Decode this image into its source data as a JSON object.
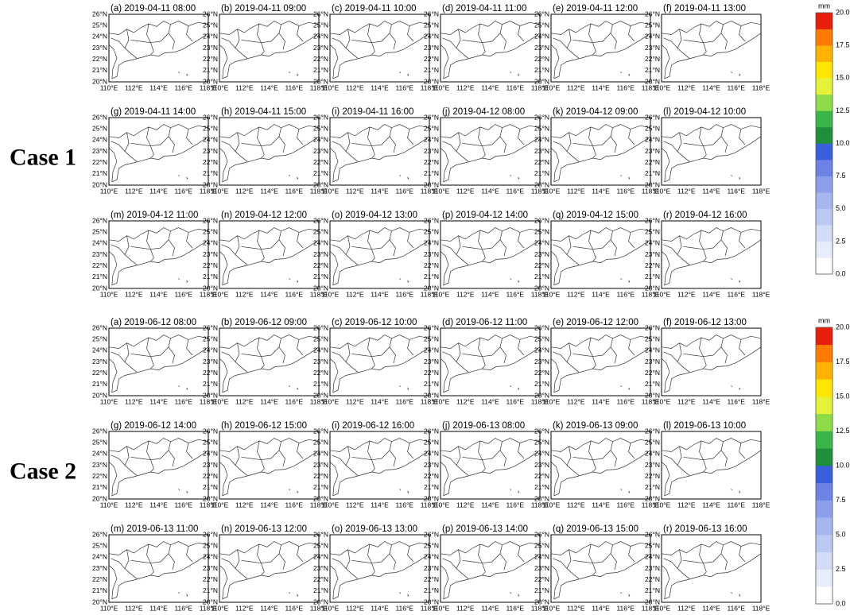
{
  "cases": [
    {
      "label": "Case 1",
      "panels": [
        "(a) 2019-04-11 08:00",
        "(b) 2019-04-11 09:00",
        "(c) 2019-04-11 10:00",
        "(d) 2019-04-11 11:00",
        "(e) 2019-04-11 12:00",
        "(f) 2019-04-11 13:00",
        "(g) 2019-04-11 14:00",
        "(h) 2019-04-11 15:00",
        "(i) 2019-04-11 16:00",
        "(j) 2019-04-12 08:00",
        "(k) 2019-04-12 09:00",
        "(l) 2019-04-12 10:00",
        "(m) 2019-04-12 11:00",
        "(n) 2019-04-12 12:00",
        "(o) 2019-04-12 13:00",
        "(p) 2019-04-12 14:00",
        "(q) 2019-04-12 15:00",
        "(r) 2019-04-12 16:00"
      ]
    },
    {
      "label": "Case 2",
      "panels": [
        "(a) 2019-06-12 08:00",
        "(b) 2019-06-12 09:00",
        "(c) 2019-06-12 10:00",
        "(d) 2019-06-12 11:00",
        "(e) 2019-06-12 12:00",
        "(f) 2019-06-12 13:00",
        "(g) 2019-06-12 14:00",
        "(h) 2019-06-12 15:00",
        "(i) 2019-06-12 16:00",
        "(j) 2019-06-13 08:00",
        "(k) 2019-06-13 09:00",
        "(l) 2019-06-13 10:00",
        "(m) 2019-06-13 11:00",
        "(n) 2019-06-13 12:00",
        "(o) 2019-06-13 13:00",
        "(p) 2019-06-13 14:00",
        "(q) 2019-06-13 15:00",
        "(r) 2019-06-13 16:00"
      ]
    }
  ],
  "lat_ticks": [
    "20°N",
    "21°N",
    "22°N",
    "23°N",
    "24°N",
    "25°N",
    "26°N"
  ],
  "lon_ticks": [
    "110°E",
    "112°E",
    "114°E",
    "116°E",
    "118°E"
  ],
  "colorbar": {
    "unit": "mm",
    "ticks": [
      "0.0",
      "2.5",
      "5.0",
      "7.5",
      "10.0",
      "12.5",
      "15.0",
      "17.5",
      "20.0"
    ],
    "colors": [
      "#ffffff",
      "#e8edfb",
      "#d3dcf7",
      "#bccaf3",
      "#a6b6ef",
      "#8c9fea",
      "#6c82e4",
      "#3a5fdc",
      "#1f8f3c",
      "#39b54a",
      "#8fdc4a",
      "#e6f23a",
      "#ffe600",
      "#ffb300",
      "#ff7a00",
      "#e81e0c"
    ]
  }
}
